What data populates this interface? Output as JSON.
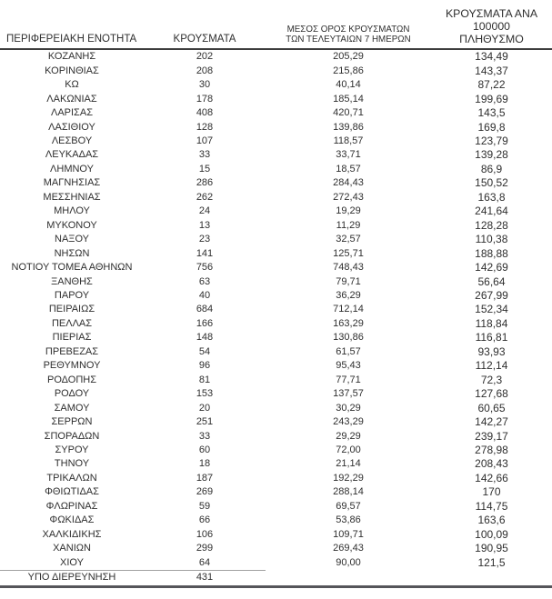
{
  "table": {
    "headers": {
      "col1": "ΠΕΡΙΦΕΡΕΙΑΚΗ ΕΝΟΤΗΤΑ",
      "col2": "ΚΡΟΥΣΜΑΤΑ",
      "col3_line1": "ΜΕΣΟΣ ΟΡΟΣ ΚΡΟΥΣΜΑΤΩΝ",
      "col3_line2": "ΤΩΝ ΤΕΛΕΥΤΑΙΩΝ 7 ΗΜΕΡΩΝ",
      "col4_line1": "ΚΡΟΥΣΜΑΤΑ ΑΝΑ 100000",
      "col4_line2": "ΠΛΗΘΥΣΜΟ"
    },
    "rows": [
      {
        "region": "ΚΟΖΑΝΗΣ",
        "cases": "202",
        "avg_7day": "205,29",
        "per_100k": "134,49"
      },
      {
        "region": "ΚΟΡΙΝΘΙΑΣ",
        "cases": "208",
        "avg_7day": "215,86",
        "per_100k": "143,37"
      },
      {
        "region": "ΚΩ",
        "cases": "30",
        "avg_7day": "40,14",
        "per_100k": "87,22"
      },
      {
        "region": "ΛΑΚΩΝΙΑΣ",
        "cases": "178",
        "avg_7day": "185,14",
        "per_100k": "199,69"
      },
      {
        "region": "ΛΑΡΙΣΑΣ",
        "cases": "408",
        "avg_7day": "420,71",
        "per_100k": "143,5"
      },
      {
        "region": "ΛΑΣΙΘΙΟΥ",
        "cases": "128",
        "avg_7day": "139,86",
        "per_100k": "169,8"
      },
      {
        "region": "ΛΕΣΒΟΥ",
        "cases": "107",
        "avg_7day": "118,57",
        "per_100k": "123,79"
      },
      {
        "region": "ΛΕΥΚΑΔΑΣ",
        "cases": "33",
        "avg_7day": "33,71",
        "per_100k": "139,28"
      },
      {
        "region": "ΛΗΜΝΟΥ",
        "cases": "15",
        "avg_7day": "18,57",
        "per_100k": "86,9"
      },
      {
        "region": "ΜΑΓΝΗΣΙΑΣ",
        "cases": "286",
        "avg_7day": "284,43",
        "per_100k": "150,52"
      },
      {
        "region": "ΜΕΣΣΗΝΙΑΣ",
        "cases": "262",
        "avg_7day": "272,43",
        "per_100k": "163,8"
      },
      {
        "region": "ΜΗΛΟΥ",
        "cases": "24",
        "avg_7day": "19,29",
        "per_100k": "241,64"
      },
      {
        "region": "ΜΥΚΟΝΟΥ",
        "cases": "13",
        "avg_7day": "11,29",
        "per_100k": "128,28"
      },
      {
        "region": "ΝΑΞΟΥ",
        "cases": "23",
        "avg_7day": "32,57",
        "per_100k": "110,38"
      },
      {
        "region": "ΝΗΣΩΝ",
        "cases": "141",
        "avg_7day": "125,71",
        "per_100k": "188,88"
      },
      {
        "region": "ΝΟΤΙΟΥ ΤΟΜΕΑ ΑΘΗΝΩΝ",
        "cases": "756",
        "avg_7day": "748,43",
        "per_100k": "142,69"
      },
      {
        "region": "ΞΑΝΘΗΣ",
        "cases": "63",
        "avg_7day": "79,71",
        "per_100k": "56,64"
      },
      {
        "region": "ΠΑΡΟΥ",
        "cases": "40",
        "avg_7day": "36,29",
        "per_100k": "267,99"
      },
      {
        "region": "ΠΕΙΡΑΙΩΣ",
        "cases": "684",
        "avg_7day": "712,14",
        "per_100k": "152,34"
      },
      {
        "region": "ΠΕΛΛΑΣ",
        "cases": "166",
        "avg_7day": "163,29",
        "per_100k": "118,84"
      },
      {
        "region": "ΠΙΕΡΙΑΣ",
        "cases": "148",
        "avg_7day": "130,86",
        "per_100k": "116,81"
      },
      {
        "region": "ΠΡΕΒΕΖΑΣ",
        "cases": "54",
        "avg_7day": "61,57",
        "per_100k": "93,93"
      },
      {
        "region": "ΡΕΘΥΜΝΟΥ",
        "cases": "96",
        "avg_7day": "95,43",
        "per_100k": "112,14"
      },
      {
        "region": "ΡΟΔΟΠΗΣ",
        "cases": "81",
        "avg_7day": "77,71",
        "per_100k": "72,3"
      },
      {
        "region": "ΡΟΔΟΥ",
        "cases": "153",
        "avg_7day": "137,57",
        "per_100k": "127,68"
      },
      {
        "region": "ΣΑΜΟΥ",
        "cases": "20",
        "avg_7day": "30,29",
        "per_100k": "60,65"
      },
      {
        "region": "ΣΕΡΡΩΝ",
        "cases": "251",
        "avg_7day": "243,29",
        "per_100k": "142,27"
      },
      {
        "region": "ΣΠΟΡΑΔΩΝ",
        "cases": "33",
        "avg_7day": "29,29",
        "per_100k": "239,17"
      },
      {
        "region": "ΣΥΡΟΥ",
        "cases": "60",
        "avg_7day": "72,00",
        "per_100k": "278,98"
      },
      {
        "region": "ΤΗΝΟΥ",
        "cases": "18",
        "avg_7day": "21,14",
        "per_100k": "208,43"
      },
      {
        "region": "ΤΡΙΚΑΛΩΝ",
        "cases": "187",
        "avg_7day": "192,29",
        "per_100k": "142,66"
      },
      {
        "region": "ΦΘΙΩΤΙΔΑΣ",
        "cases": "269",
        "avg_7day": "288,14",
        "per_100k": "170"
      },
      {
        "region": "ΦΛΩΡΙΝΑΣ",
        "cases": "59",
        "avg_7day": "69,57",
        "per_100k": "114,75"
      },
      {
        "region": "ΦΩΚΙΔΑΣ",
        "cases": "66",
        "avg_7day": "53,86",
        "per_100k": "163,6"
      },
      {
        "region": "ΧΑΛΚΙΔΙΚΗΣ",
        "cases": "106",
        "avg_7day": "109,71",
        "per_100k": "100,09"
      },
      {
        "region": "ΧΑΝΙΩΝ",
        "cases": "299",
        "avg_7day": "269,43",
        "per_100k": "190,95"
      },
      {
        "region": "ΧΙΟΥ",
        "cases": "64",
        "avg_7day": "90,00",
        "per_100k": "121,5"
      },
      {
        "region": "ΥΠΟ ΔΙΕΡΕΥΝΗΣΗ",
        "cases": "431",
        "avg_7day": "",
        "per_100k": ""
      }
    ]
  },
  "colors": {
    "text": "#2f2f2f",
    "thin_rule": "#a0a0a0",
    "header_rule": "#3d3d3d",
    "bottom_rule": "#55555a",
    "background": "#ffffff"
  }
}
